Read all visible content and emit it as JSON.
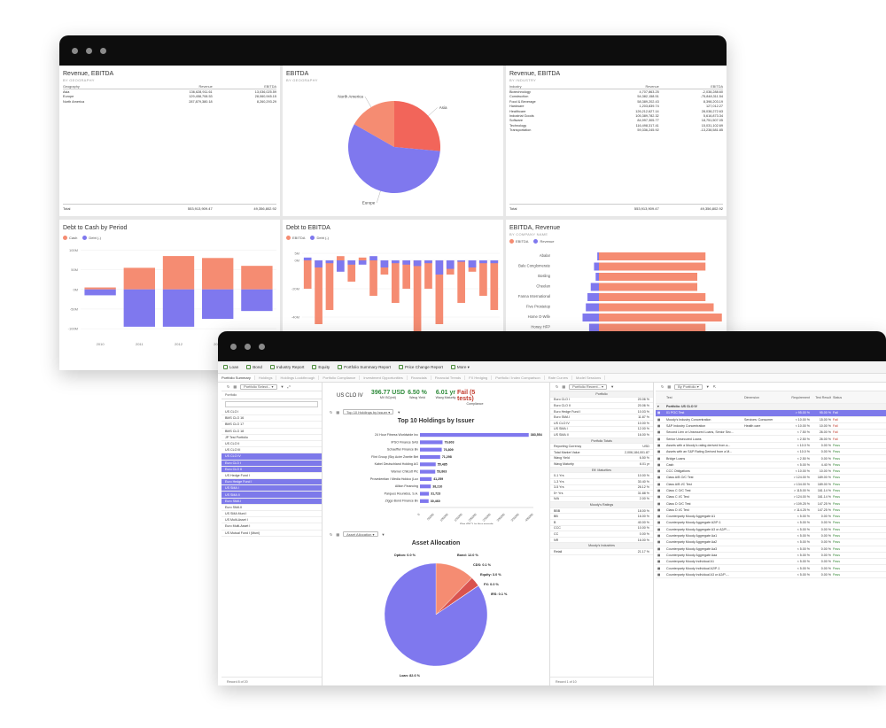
{
  "back": {
    "rev_geo": {
      "title": "Revenue, EBITDA",
      "subtitle": "BY GEOGRAPHY",
      "headers": [
        "Geography",
        "Revenue",
        "EBITDA"
      ],
      "rows": [
        [
          "Asia",
          "136,628,911.61",
          "13,036,025.59"
        ],
        [
          "Europe",
          "129,458,708.53",
          "28,060,945.15"
        ],
        [
          "North America",
          "287,879,380.18",
          "8,260,293.29"
        ]
      ],
      "total": [
        "Total",
        "553,913,909.47",
        "49,356,802.92"
      ]
    },
    "ebitda_geo": {
      "title": "EBITDA",
      "subtitle": "BY GEOGRAPHY",
      "slices": [
        {
          "label": "Asia",
          "value": 13036025.59,
          "color": "#f2655a"
        },
        {
          "label": "Europe",
          "value": 28060945.15,
          "color": "#7f78ee"
        },
        {
          "label": "North America",
          "value": 8260293.29,
          "color": "#f58c72"
        }
      ]
    },
    "rev_ind": {
      "title": "Revenue, EBITDA",
      "subtitle": "BY INDUSTRY",
      "headers": [
        "Industry",
        "Revenue",
        "EBITDA"
      ],
      "rows": [
        [
          "Biotechnology",
          "4,707,863.25",
          "-2,038,288.60"
        ],
        [
          "Construction",
          "54,382,158.51",
          "-75,848,311.54"
        ],
        [
          "Food & Beverage",
          "58,389,202.43",
          "8,398,203.19"
        ],
        [
          "Hardware",
          "1,203,839.74",
          "127,012.27"
        ],
        [
          "Healthcare",
          "126,212,627.14",
          "28,038,272.63"
        ],
        [
          "Industrial Goods",
          "105,389,782.32",
          "5,616,873.34"
        ],
        [
          "Software",
          "84,997,305.77",
          "18,751,507.05"
        ],
        [
          "Technology",
          "116,498,317.41",
          "15,031,102.69"
        ],
        [
          "Transportation",
          "59,336,245.92",
          "-13,238,581.85"
        ]
      ],
      "total": [
        "Total",
        "553,913,909.47",
        "49,356,802.92"
      ]
    },
    "debt_cash": {
      "title": "Debt to Cash by Period",
      "legend": [
        "Cash",
        "Debt (-)"
      ],
      "colors": {
        "cash": "#f58c72",
        "debt": "#7f78ee"
      }
    },
    "debt_ebitda": {
      "title": "Debt to EBITDA",
      "legend": [
        "EBITDA",
        "Debt (-)"
      ]
    },
    "ebitda_rev": {
      "title": "EBITDA, Revenue",
      "subtitle": "BY COMPANY NAME",
      "legend": [
        "EBITDA",
        "Revenue"
      ],
      "companies": [
        "Abalar",
        "Bale Conglomerate",
        "Bosling",
        "Cheelan",
        "Fanna International",
        "Five Prostetop",
        "Home O-Wife",
        "Honey HFP"
      ]
    }
  },
  "front": {
    "toolbar": [
      "Loan",
      "Bond",
      "Industry Report",
      "Equity",
      "Portfolio Summary Report",
      "Price Change Report",
      "More"
    ],
    "tabs": [
      "Portfolio Summary",
      "Holdings",
      "Holdings Lookthrough",
      "Portfolio Compliance",
      "Investment Opportunities",
      "Financials",
      "Financial Trends",
      "FX Hedging",
      "Portfolio / Index Comparison",
      "Rate Curves",
      "Model Sessions"
    ],
    "portfolio_list": {
      "selector": "Portfolio Select...",
      "header": "Portfolio",
      "items": [
        "US CLO I",
        "BMS CLO 16",
        "BMS CLO 17",
        "BMS CLO 18",
        "JP Test Portfolio",
        "US CLO II",
        "US CLO III",
        "US CLO IV",
        "Euro CLO I",
        "Euro CLO II",
        "US Hedge Fund I",
        "Euro Hedge Fund I",
        "US SMA I",
        "US SMA II",
        "Euro SMA I",
        "Euro SMA II",
        "US SMA Muni I",
        "US Multi-Asset I",
        "Euro Multi-Asset I",
        "US Mutual Fund I (Muni)"
      ],
      "selected": [
        7,
        8,
        9,
        11,
        12,
        13,
        14
      ],
      "footer": "Record 8 of 20"
    },
    "summary": {
      "portfolio": "US CLO IV",
      "kpis": [
        {
          "value": "396.77 USD",
          "label": "MV BC(mil)",
          "color": "#2e8b3a"
        },
        {
          "value": "6.50 %",
          "label": "Wavg Yield",
          "color": "#2e8b3a"
        },
        {
          "value": "6.01 yr",
          "label": "Wavg Maturity",
          "color": "#2e8b3a"
        },
        {
          "value": "Fail (5 tests)",
          "label": "Compliance",
          "color": "#c0392b"
        }
      ]
    },
    "top10": {
      "selector": "Top 10 Holdings by Issuer",
      "title": "Top 10 Holdings by Issuer",
      "xlabel": "Par (RC) in thousands",
      "ticks": [
        "0",
        "50000",
        "100000",
        "150000",
        "200000",
        "250000",
        "300000",
        "350000",
        "400000"
      ]
    },
    "alloc": {
      "selector": "Asset Allocation",
      "title": "Asset Allocation",
      "labels": [
        "Option: 0.0 %",
        "Bond: 12.0 %",
        "CDS: 0.1 %",
        "Equity: 3.0 %",
        "FX: 0.0 %",
        "IRS: 0.1 %",
        "Loan: 82.6 %"
      ]
    },
    "recents": {
      "selector": "Portfolio Recent...",
      "groups": [
        {
          "title": "Portfolio",
          "rows": [
            [
              "Euro CLO I",
              "20.06 %"
            ],
            [
              "Euro CLO II",
              "20.06 %"
            ],
            [
              "Euro Hedge Fund I",
              "10.03 %"
            ],
            [
              "Euro SMA I",
              "11.87 %"
            ],
            [
              "US CLO IV",
              "10.00 %"
            ],
            [
              "US SMA I",
              "12.00 %"
            ],
            [
              "US SMA II",
              "16.00 %"
            ]
          ]
        },
        {
          "title": "Portfolio Totals",
          "rows": [
            [
              "Reporting Currency",
              "USD"
            ],
            [
              "Total Market Value",
              "2,006,184,001.87"
            ],
            [
              "Wavg Yield",
              "6.50 %"
            ],
            [
              "Wavg Maturity",
              "6.01 yr"
            ]
          ]
        },
        {
          "title": "Eff. Maturities",
          "rows": [
            [
              "0-1 Yrs",
              "10.00 %"
            ],
            [
              "1-3 Yrs",
              "30.40 %"
            ],
            [
              "3-5 Yrs",
              "26.12 %"
            ],
            [
              "5+ Yrs",
              "31.88 %"
            ],
            [
              "N/A",
              "2.00 %"
            ]
          ]
        },
        {
          "title": "Moody's Ratings",
          "rows": [
            [
              "BBB",
              "18.00 %"
            ],
            [
              "BB",
              "16.00 %"
            ],
            [
              "B",
              "40.00 %"
            ],
            [
              "CCC",
              "10.00 %"
            ],
            [
              "CC",
              "0.00 %"
            ],
            [
              "NR",
              "16.00 %"
            ]
          ]
        },
        {
          "title": "Moody's Industries",
          "rows": [
            [
              "Retail",
              "21.17 %"
            ]
          ]
        }
      ],
      "footer": "Record 1 of 10"
    },
    "compliance": {
      "selector": "By Portfolio",
      "headers": [
        "Test",
        "Dimension",
        "Requirement",
        "Test Result",
        "Status"
      ],
      "group": "Portfolio: US CLO IV",
      "rows": [
        [
          "01 POC Test",
          "",
          "> 95.00 %",
          "95.00 %",
          "Fail",
          true
        ],
        [
          "Moody's Industry Concentration",
          "Services: Consumer",
          "< 10.00 %",
          "15.00 %",
          "Fail",
          false
        ],
        [
          "S&P Industry Concentration",
          "Health care",
          "< 10.00 %",
          "10.00 %",
          "Fail",
          false
        ],
        [
          "Second Lien or Unsecured Loans, Senior Sec...",
          "",
          "< 7.50 %",
          "26.00 %",
          "Fail",
          false
        ],
        [
          "Senior Unsecured Loans",
          "",
          "< 2.50 %",
          "26.00 %",
          "Fail",
          false
        ],
        [
          "Assets with a Moody's rating derived from a...",
          "",
          "< 10.0 %",
          "0.00 %",
          "Pass",
          false
        ],
        [
          "Assets with an S&P Rating Derived from a M...",
          "",
          "< 10.0 %",
          "0.00 %",
          "Pass",
          false
        ],
        [
          "Bridge Loans",
          "",
          "< 2.50 %",
          "0.00 %",
          "Pass",
          false
        ],
        [
          "Cash",
          "",
          "< 5.00 %",
          "4.40 %",
          "Pass",
          false
        ],
        [
          "CCC Obligations",
          "",
          "< 10.00 %",
          "10.00 %",
          "Pass",
          false
        ],
        [
          "Class A/B O/C Test",
          "",
          "> 124.00 %",
          "189.00 %",
          "Pass",
          false
        ],
        [
          "Class A/B I/C Test",
          "",
          "> 134.00 %",
          "189.00 %",
          "Pass",
          false
        ],
        [
          "Class C O/C Test",
          "",
          "> 115.00 %",
          "161.14 %",
          "Pass",
          false
        ],
        [
          "Class C I/C Test",
          "",
          "> 124.00 %",
          "161.14 %",
          "Pass",
          false
        ],
        [
          "Class D O/C Test",
          "",
          "> 109.25 %",
          "147.25 %",
          "Pass",
          false
        ],
        [
          "Class D I/C Test",
          "",
          "> 114.25 %",
          "147.25 %",
          "Pass",
          false
        ],
        [
          "Counterparty Moody Aggregate A1",
          "",
          "< 5.00 %",
          "0.00 %",
          "Pass",
          false
        ],
        [
          "Counterparty Moody Aggregate A2/P-1",
          "",
          "< 5.00 %",
          "0.00 %",
          "Pass",
          false
        ],
        [
          "Counterparty Moody Aggregate A3 or A2/P-...",
          "",
          "< 5.00 %",
          "0.00 %",
          "Pass",
          false
        ],
        [
          "Counterparty Moody Aggregate Aa1",
          "",
          "< 5.00 %",
          "0.00 %",
          "Pass",
          false
        ],
        [
          "Counterparty Moody Aggregate Aa2",
          "",
          "< 5.00 %",
          "0.00 %",
          "Pass",
          false
        ],
        [
          "Counterparty Moody Aggregate Aa3",
          "",
          "< 5.00 %",
          "0.00 %",
          "Pass",
          false
        ],
        [
          "Counterparty Moody Aggregate Aaa",
          "",
          "< 5.00 %",
          "0.00 %",
          "Pass",
          false
        ],
        [
          "Counterparty Moody Individual A1",
          "",
          "< 5.00 %",
          "0.00 %",
          "Pass",
          false
        ],
        [
          "Counterparty Moody Individual A2/P-1",
          "",
          "< 5.00 %",
          "0.00 %",
          "Pass",
          false
        ],
        [
          "Counterparty Moody Individual A3 or A2/P-...",
          "",
          "< 5.00 %",
          "0.00 %",
          "Pass",
          false
        ]
      ]
    }
  },
  "chart_data": [
    {
      "type": "table",
      "title": "Revenue, EBITDA",
      "subtitle": "BY GEOGRAPHY"
    },
    {
      "type": "pie",
      "title": "EBITDA",
      "subtitle": "BY GEOGRAPHY",
      "categories": [
        "Asia",
        "Europe",
        "North America"
      ],
      "values": [
        13036025.59,
        28060945.15,
        8260293.29
      ]
    },
    {
      "type": "table",
      "title": "Revenue, EBITDA",
      "subtitle": "BY INDUSTRY"
    },
    {
      "type": "bar",
      "title": "Debt to Cash by Period",
      "categories": [
        "2010",
        "2011",
        "2012",
        "2013",
        "2014"
      ],
      "series": [
        {
          "name": "Cash",
          "values": [
            5,
            55,
            85,
            80,
            60
          ]
        },
        {
          "name": "Debt (-)",
          "values": [
            -15,
            -95,
            -95,
            -75,
            -55
          ]
        }
      ],
      "yticks": [
        "100M",
        "50M",
        "0M",
        "-50M",
        "-100M"
      ],
      "ylim": [
        -120,
        110
      ]
    },
    {
      "type": "bar",
      "title": "Debt to EBITDA",
      "series": [
        {
          "name": "EBITDA",
          "values": [
            -20,
            -45,
            -35,
            3,
            -15,
            2,
            -25,
            -10,
            -30,
            -20,
            -55,
            -20,
            -45,
            -10,
            -30,
            -8,
            -25,
            -35
          ]
        },
        {
          "name": "Debt (-)",
          "values": [
            2,
            -5,
            -2,
            -8,
            -3,
            -3,
            3,
            -5,
            -2,
            -3,
            -4,
            -2,
            -10,
            -6,
            -1,
            -5,
            -2,
            -2
          ]
        }
      ],
      "yticks": [
        "5M",
        "0M",
        "-20M",
        "-40M",
        "-60M"
      ],
      "ylim": [
        -60,
        10
      ]
    },
    {
      "type": "bar",
      "title": "EBITDA, Revenue",
      "subtitle": "BY COMPANY NAME",
      "categories": [
        "Abalar",
        "Bale Conglomerate",
        "Bosling",
        "Cheelan",
        "Fanna International",
        "Five Prostetop",
        "Home O-Wife",
        "Honey HFP"
      ],
      "series": [
        {
          "name": "EBITDA",
          "values": [
            -1,
            -3,
            -2,
            -5,
            -7,
            -8,
            -10,
            -6
          ]
        },
        {
          "name": "Revenue",
          "values": [
            65,
            65,
            60,
            60,
            65,
            70,
            75,
            65
          ]
        }
      ]
    },
    {
      "type": "bar",
      "title": "Top 10 Holdings by Issuer",
      "categories": [
        "24 Hour Fitness Worldwide Inc",
        "IPSO Finance SAS",
        "Schaeffler Finance Bv",
        "Flint Group (Sky Acier Zweite Bet",
        "Kabel Deutschland Holding AG",
        "Warner Chilcott Plc",
        "Provedentian / Media Holdco (Lux",
        "Alliion Financing",
        "Parques Reunidos, S.A.",
        "Ziggo Bond Finance Bv"
      ],
      "values": [
        383554,
        79603,
        76809,
        71298,
        55485,
        53863,
        41259,
        38210,
        31723,
        30460
      ],
      "xlabel": "Par (RC) in thousands",
      "xlim": [
        0,
        400000
      ]
    },
    {
      "type": "pie",
      "title": "Asset Allocation",
      "categories": [
        "Option",
        "Bond",
        "CDS",
        "Equity",
        "FX",
        "IRS",
        "Loan"
      ],
      "values": [
        0.0,
        12.0,
        0.1,
        3.0,
        0.0,
        0.1,
        82.6
      ]
    }
  ]
}
